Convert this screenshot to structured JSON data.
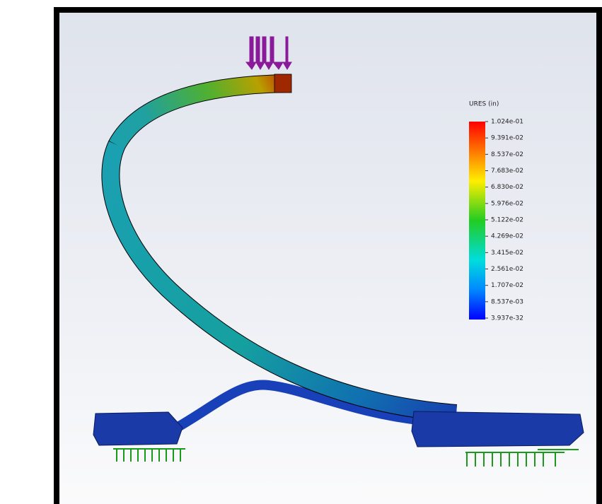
{
  "legend": {
    "title": "URES (in)",
    "labels": [
      "1.024e-01",
      "9.391e-02",
      "8.537e-02",
      "7.683e-02",
      "6.830e-02",
      "5.976e-02",
      "5.122e-02",
      "4.269e-02",
      "3.415e-02",
      "2.561e-02",
      "1.707e-02",
      "8.537e-03",
      "3.937e-32"
    ]
  }
}
